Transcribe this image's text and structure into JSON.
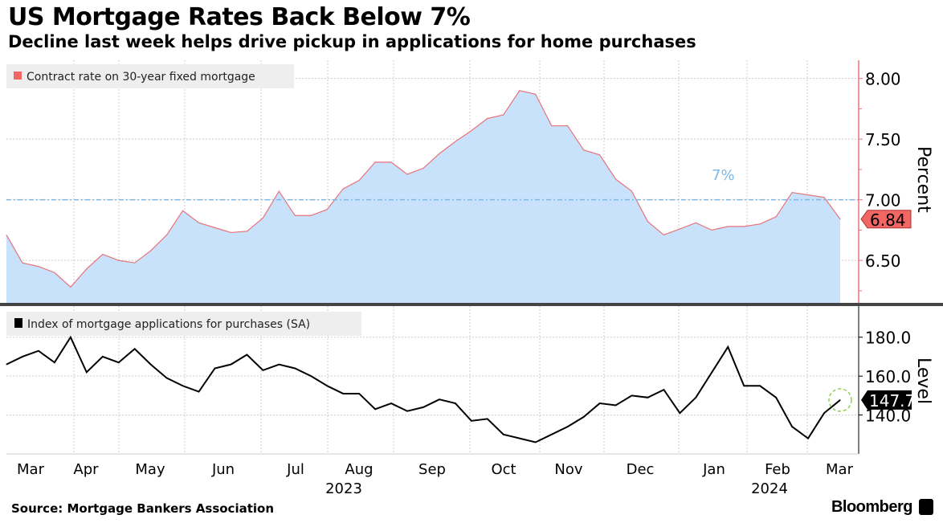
{
  "title": "US Mortgage Rates Back Below 7%",
  "subtitle": "Decline last week helps drive pickup in applications for home purchases",
  "source": "Source: Mortgage Bankers Association",
  "brand": "Bloomberg",
  "colors": {
    "rate_line": "#e8737b",
    "rate_fill": "#c9e2fb",
    "ref_line": "#7cb8e6",
    "apps_line": "#000000",
    "marker": "#8fd14f",
    "rate_tag": "#f26663"
  },
  "chart_data": [
    {
      "type": "area",
      "title": "Contract rate on 30-year fixed mortgage",
      "legend": "Contract rate on 30-year fixed mortgage",
      "ylabel": "Percent",
      "ylim": [
        6.15,
        8.15
      ],
      "yticks": [
        "8.00",
        "7.50",
        "7.00",
        "6.50"
      ],
      "ytick_values": [
        8,
        7.5,
        7,
        6.5
      ],
      "reference_line": {
        "value": 7.0,
        "label": "7%"
      },
      "last_value_label": "6.84",
      "values": [
        6.71,
        6.48,
        6.45,
        6.4,
        6.28,
        6.43,
        6.55,
        6.5,
        6.48,
        6.58,
        6.71,
        6.91,
        6.81,
        6.77,
        6.73,
        6.74,
        6.85,
        7.07,
        6.87,
        6.87,
        6.92,
        7.09,
        7.16,
        7.31,
        7.31,
        7.21,
        7.26,
        7.38,
        7.48,
        7.57,
        7.67,
        7.7,
        7.9,
        7.87,
        7.61,
        7.61,
        7.41,
        7.37,
        7.17,
        7.07,
        6.82,
        6.71,
        6.76,
        6.81,
        6.75,
        6.78,
        6.78,
        6.8,
        6.86,
        7.06,
        7.04,
        7.02,
        6.84
      ]
    },
    {
      "type": "line",
      "title": "Index of mortgage applications for purchases (SA)",
      "legend": "Index of mortgage applications for purchases (SA)",
      "ylabel": "Level",
      "ylim": [
        120,
        196
      ],
      "yticks": [
        "180.0",
        "160.0",
        "140.0"
      ],
      "ytick_values": [
        180,
        160,
        140
      ],
      "last_value_label": "147.7",
      "values": [
        166,
        170,
        173,
        167,
        180,
        162,
        170,
        167,
        174,
        166,
        159,
        155,
        152,
        164,
        166,
        171,
        163,
        166,
        164,
        160,
        155,
        151,
        151,
        143,
        146,
        142,
        144,
        148,
        146,
        137,
        138,
        130,
        128,
        126,
        130,
        134,
        139,
        146,
        145,
        150,
        149,
        153,
        141,
        149,
        162,
        175,
        155,
        155,
        149,
        134,
        128,
        141,
        147.7
      ]
    }
  ],
  "x_axis": {
    "months": [
      "Mar",
      "Apr",
      "May",
      "Jun",
      "Jul",
      "Aug",
      "Sep",
      "Oct",
      "Nov",
      "Dec",
      "Jan",
      "Feb",
      "Mar"
    ],
    "years": [
      "2023",
      "2024"
    ]
  }
}
